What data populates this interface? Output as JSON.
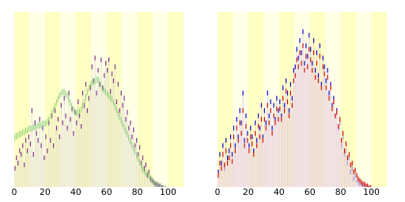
{
  "chart_data": [
    {
      "type": "bar-line",
      "x": [
        0,
        1,
        2,
        3,
        4,
        5,
        6,
        7,
        8,
        9,
        10,
        11,
        12,
        13,
        14,
        15,
        16,
        17,
        18,
        19,
        20,
        21,
        22,
        23,
        24,
        25,
        26,
        27,
        28,
        29,
        30,
        31,
        32,
        33,
        34,
        35,
        36,
        37,
        38,
        39,
        40,
        41,
        42,
        43,
        44,
        45,
        46,
        47,
        48,
        49,
        50,
        51,
        52,
        53,
        54,
        55,
        56,
        57,
        58,
        59,
        60,
        61,
        62,
        63,
        64,
        65,
        66,
        67,
        68,
        69,
        70,
        71,
        72,
        73,
        74,
        75,
        76,
        77,
        78,
        79,
        80,
        81,
        82,
        83,
        84,
        85,
        86,
        87,
        88,
        89,
        90,
        91,
        92,
        93,
        94,
        95,
        96,
        97,
        98,
        99
      ],
      "xlim": [
        0,
        110
      ],
      "xticks": [
        0,
        20,
        40,
        60,
        80,
        100
      ],
      "ylim": [
        0,
        100
      ],
      "series": [
        {
          "color": "#33aa33",
          "values": [
            30,
            31,
            31,
            32,
            32,
            33,
            33,
            34,
            34,
            35,
            35,
            35,
            36,
            36,
            36,
            37,
            37,
            37,
            38,
            38,
            38,
            39,
            40,
            42,
            44,
            46,
            48,
            50,
            52,
            54,
            55,
            56,
            56,
            55,
            54,
            52,
            50,
            48,
            46,
            45,
            44,
            44,
            45,
            46,
            48,
            50,
            53,
            56,
            58,
            60,
            61,
            62,
            62,
            63,
            63,
            62,
            60,
            58,
            57,
            56,
            55,
            54,
            53,
            52,
            50,
            48,
            46,
            44,
            42,
            40,
            38,
            36,
            34,
            32,
            30,
            28,
            26,
            24,
            22,
            20,
            18,
            16,
            14,
            12,
            11,
            10,
            9,
            8,
            7,
            6,
            5,
            4,
            3,
            3,
            2,
            2,
            1,
            1,
            1,
            0
          ]
        },
        {
          "color": "#7a2b8e",
          "values": [
            12,
            18,
            15,
            22,
            20,
            25,
            14,
            28,
            22,
            30,
            26,
            45,
            20,
            38,
            32,
            28,
            40,
            25,
            35,
            18,
            30,
            22,
            38,
            28,
            42,
            25,
            45,
            35,
            40,
            30,
            48,
            38,
            52,
            42,
            35,
            55,
            40,
            46,
            32,
            44,
            38,
            50,
            42,
            36,
            55,
            48,
            60,
            45,
            52,
            58,
            70,
            62,
            75,
            55,
            68,
            60,
            74,
            58,
            65,
            72,
            68,
            74,
            56,
            66,
            62,
            70,
            50,
            60,
            45,
            55,
            48,
            52,
            40,
            44,
            35,
            38,
            30,
            34,
            25,
            28,
            20,
            24,
            15,
            18,
            12,
            14,
            8,
            10,
            6,
            5,
            4,
            3,
            3,
            2,
            2,
            1,
            1,
            0,
            0,
            0
          ]
        }
      ]
    },
    {
      "type": "bar",
      "x": [
        0,
        1,
        2,
        3,
        4,
        5,
        6,
        7,
        8,
        9,
        10,
        11,
        12,
        13,
        14,
        15,
        16,
        17,
        18,
        19,
        20,
        21,
        22,
        23,
        24,
        25,
        26,
        27,
        28,
        29,
        30,
        31,
        32,
        33,
        34,
        35,
        36,
        37,
        38,
        39,
        40,
        41,
        42,
        43,
        44,
        45,
        46,
        47,
        48,
        49,
        50,
        51,
        52,
        53,
        54,
        55,
        56,
        57,
        58,
        59,
        60,
        61,
        62,
        63,
        64,
        65,
        66,
        67,
        68,
        69,
        70,
        71,
        72,
        73,
        74,
        75,
        76,
        77,
        78,
        79,
        80,
        81,
        82,
        83,
        84,
        85,
        86,
        87,
        88,
        89,
        90,
        91,
        92,
        93,
        94,
        95,
        96,
        97,
        98,
        99
      ],
      "xlim": [
        0,
        110
      ],
      "xticks": [
        0,
        20,
        40,
        60,
        80,
        100
      ],
      "ylim": [
        0,
        100
      ],
      "series": [
        {
          "color": "#0000cc",
          "values": [
            10,
            20,
            15,
            25,
            12,
            28,
            18,
            22,
            30,
            20,
            35,
            25,
            40,
            30,
            45,
            38,
            55,
            28,
            42,
            32,
            25,
            35,
            30,
            22,
            38,
            28,
            42,
            35,
            48,
            30,
            45,
            38,
            55,
            42,
            50,
            35,
            48,
            40,
            52,
            45,
            50,
            42,
            58,
            48,
            62,
            55,
            45,
            60,
            52,
            68,
            70,
            80,
            75,
            85,
            78,
            90,
            72,
            82,
            76,
            88,
            80,
            72,
            85,
            68,
            78,
            65,
            82,
            60,
            75,
            70,
            62,
            68,
            55,
            60,
            48,
            52,
            42,
            45,
            35,
            38,
            25,
            30,
            20,
            22,
            15,
            18,
            10,
            12,
            6,
            8,
            5,
            4,
            3,
            3,
            2,
            2,
            1,
            1,
            0,
            0
          ]
        },
        {
          "color": "#cc0000",
          "values": [
            8,
            15,
            12,
            20,
            14,
            22,
            15,
            18,
            25,
            16,
            30,
            22,
            35,
            28,
            38,
            32,
            45,
            25,
            36,
            28,
            22,
            30,
            26,
            20,
            32,
            25,
            36,
            30,
            40,
            28,
            40,
            35,
            48,
            38,
            45,
            32,
            42,
            38,
            46,
            40,
            46,
            40,
            52,
            45,
            56,
            50,
            42,
            55,
            48,
            62,
            65,
            74,
            70,
            78,
            72,
            82,
            68,
            76,
            70,
            80,
            74,
            68,
            78,
            64,
            72,
            62,
            76,
            58,
            70,
            66,
            58,
            64,
            52,
            58,
            46,
            50,
            42,
            44,
            36,
            40,
            28,
            32,
            22,
            26,
            18,
            20,
            14,
            15,
            10,
            11,
            8,
            6,
            5,
            4,
            3,
            3,
            2,
            2,
            1,
            1
          ]
        }
      ]
    }
  ]
}
